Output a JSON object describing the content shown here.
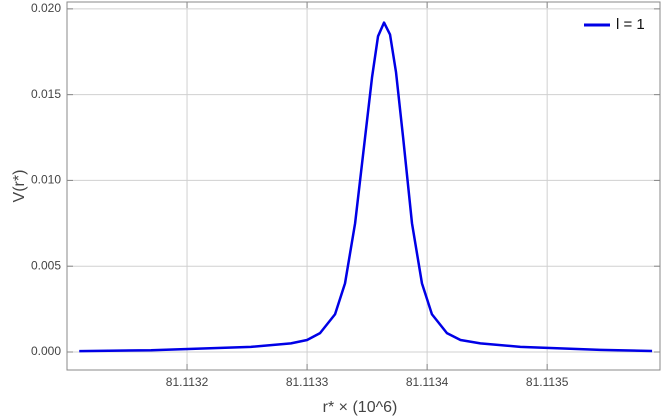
{
  "chart_data": {
    "type": "line",
    "x_label": "r* × (10^6)",
    "y_label": "V(r*)",
    "x": [
      81.1131102,
      81.1131701,
      81.1132532,
      81.1132865,
      81.1133,
      81.1133108,
      81.1133233,
      81.1133316,
      81.11334,
      81.1133483,
      81.1133541,
      81.1133591,
      81.1133641,
      81.1133691,
      81.1133741,
      81.11338,
      81.1133874,
      81.1133957,
      81.113404,
      81.1134165,
      81.1134278,
      81.1134444,
      81.1134777,
      81.1135442,
      81.1135874
    ],
    "series": [
      {
        "name": "l = 1",
        "color": "#0000e6",
        "values": [
          5e-05,
          0.0001,
          0.0003,
          0.0005,
          0.0007,
          0.0011,
          0.0022,
          0.004,
          0.0075,
          0.0125,
          0.016,
          0.0184,
          0.0192,
          0.0185,
          0.0163,
          0.0125,
          0.0075,
          0.004,
          0.0022,
          0.0011,
          0.0007,
          0.0005,
          0.0003,
          0.00012,
          6e-05
        ]
      }
    ],
    "xlim": [
      81.1131,
      81.113594
    ],
    "ylim": [
      -0.00105,
      0.0204
    ],
    "xticks": [
      81.1132,
      81.1133,
      81.1134,
      81.1135
    ],
    "yticks": [
      {
        "value": 0,
        "label": "0.000"
      },
      {
        "value": 0.005,
        "label": "0.005"
      },
      {
        "value": 0.01,
        "label": "0.010"
      },
      {
        "value": 0.015,
        "label": "0.015"
      },
      {
        "value": 0.02,
        "label": "0.020"
      }
    ],
    "grid": true,
    "legend": "top-right"
  }
}
